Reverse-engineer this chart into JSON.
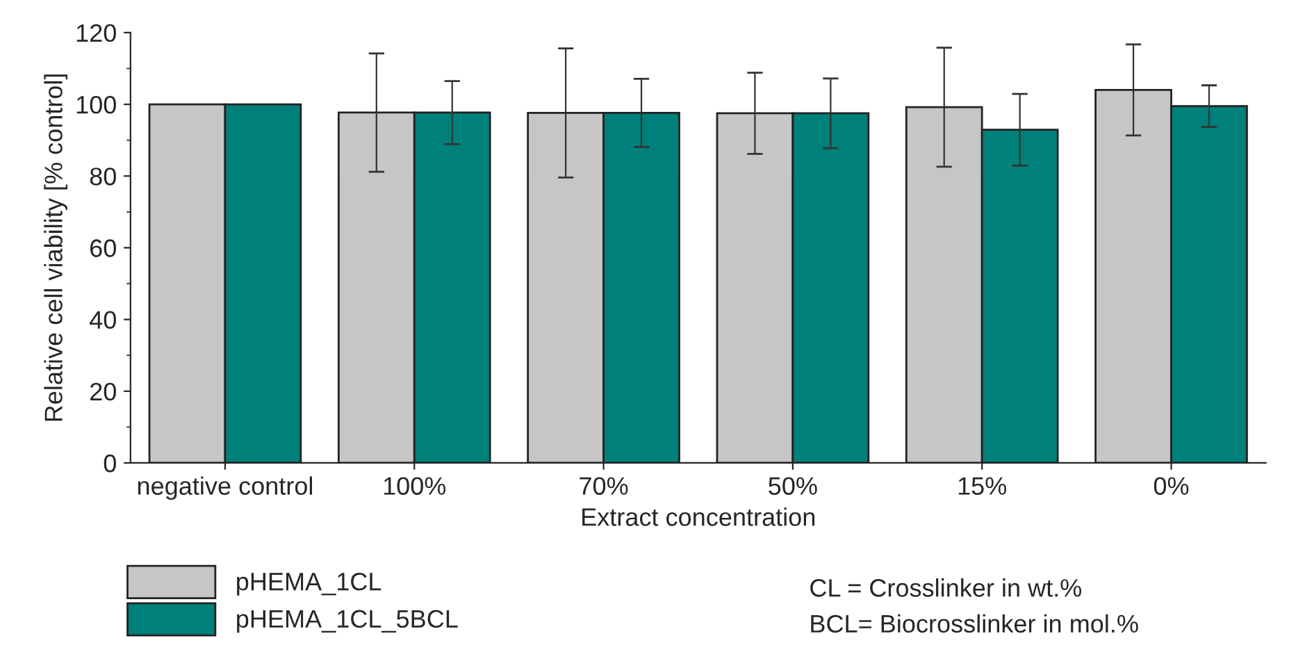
{
  "chart_data": {
    "type": "bar",
    "xlabel": "Extract concentration",
    "ylabel": "Relative cell viability [% control]",
    "categories": [
      "negative control",
      "100%",
      "70%",
      "50%",
      "15%",
      "0%"
    ],
    "series": [
      {
        "name": "pHEMA_1CL",
        "color": "#c6c6c6",
        "values": [
          100,
          97.7,
          97.6,
          97.5,
          99.2,
          104
        ],
        "errors": [
          null,
          16.5,
          18,
          11.3,
          16.6,
          12.7
        ]
      },
      {
        "name": "pHEMA_1CL_5BCL",
        "color": "#00807a",
        "values": [
          100,
          97.7,
          97.6,
          97.5,
          92.9,
          99.5
        ],
        "errors": [
          null,
          8.8,
          9.5,
          9.7,
          10,
          5.8
        ]
      }
    ],
    "ylim": [
      0,
      120
    ],
    "yticks": [
      0,
      20,
      40,
      60,
      80,
      100,
      120
    ],
    "grid": false,
    "legend": "bottom left",
    "annotations": [
      "CL = Crosslinker in wt.%",
      "BCL= Biocrosslinker in mol.%"
    ]
  }
}
